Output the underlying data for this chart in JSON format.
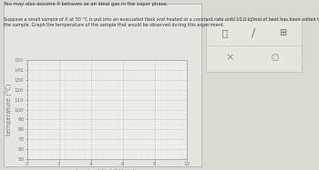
{
  "title": "",
  "xlabel": "heat added (kJ/mol)",
  "ylabel": "temperature (°C)",
  "xlim": [
    0,
    10
  ],
  "ylim": [
    50,
    150
  ],
  "xticks": [
    0,
    2,
    4,
    6,
    8,
    10
  ],
  "yticks": [
    50,
    60,
    70,
    80,
    90,
    100,
    110,
    120,
    130,
    140,
    150
  ],
  "xtick_labels": [
    "0",
    "2",
    "4",
    "6",
    "8",
    "10"
  ],
  "ytick_labels": [
    "50",
    "60",
    "70",
    "80",
    "90",
    "100",
    "110",
    "120",
    "130",
    "140",
    "150"
  ],
  "grid_major_color": "#cccccc",
  "grid_minor_color": "#e2e2e2",
  "plot_bg": "#f0ede8",
  "outer_bg": "#dcd9d3",
  "chart_border_color": "#aaaaaa",
  "axis_color": "#999999",
  "tick_color": "#777777",
  "label_fontsize": 4.8,
  "tick_fontsize": 4.0,
  "text_color": "#333333",
  "text1": "You may also assume X behaves as an ideal gas in the vapor phase.",
  "text2": "Suppose a small sample of X at 50 °C is put into an evacuated flask and heated at a constant rate until 10.0 kJ/mol of heat has been added to\nthe sample. Graph the temperature of the sample that would be observed during this experiment.",
  "text_fontsize1": 3.8,
  "text_fontsize2": 3.5,
  "toolbar_bg": "#e8e4de",
  "toolbar_border": "#bbbbbb"
}
